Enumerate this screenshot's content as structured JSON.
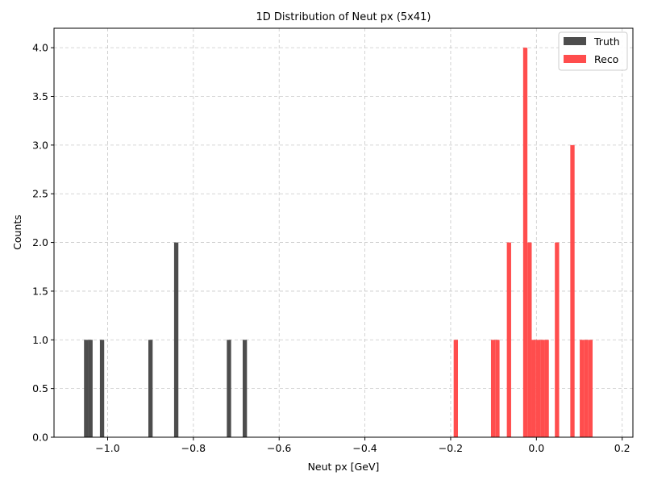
{
  "chart_data": {
    "type": "bar",
    "title": "1D Distribution of Neut px (5x41)",
    "xlabel": "Neut px [GeV]",
    "ylabel": "Counts",
    "xlim": [
      -1.125,
      0.225
    ],
    "ylim": [
      0.0,
      4.2
    ],
    "xticks": [
      -1.0,
      -0.8,
      -0.6,
      -0.4,
      -0.2,
      0.0,
      0.2
    ],
    "xtick_labels": [
      "−1.0",
      "−0.8",
      "−0.6",
      "−0.4",
      "−0.2",
      "0.0",
      "0.2"
    ],
    "yticks": [
      0.0,
      0.5,
      1.0,
      1.5,
      2.0,
      2.5,
      3.0,
      3.5,
      4.0
    ],
    "ytick_labels": [
      "0.0",
      "0.5",
      "1.0",
      "1.5",
      "2.0",
      "2.5",
      "3.0",
      "3.5",
      "4.0"
    ],
    "grid": true,
    "legend_position": "top-right",
    "series": [
      {
        "name": "Truth",
        "color": "#4d4d4d",
        "bins": [
          {
            "x0": -1.055,
            "x1": -1.045,
            "count": 1
          },
          {
            "x0": -1.045,
            "x1": -1.035,
            "count": 1
          },
          {
            "x0": -1.018,
            "x1": -1.008,
            "count": 1
          },
          {
            "x0": -0.905,
            "x1": -0.895,
            "count": 1
          },
          {
            "x0": -0.845,
            "x1": -0.835,
            "count": 2
          },
          {
            "x0": -0.722,
            "x1": -0.712,
            "count": 1
          },
          {
            "x0": -0.685,
            "x1": -0.675,
            "count": 1
          }
        ]
      },
      {
        "name": "Reco",
        "color": "#ff4d4d",
        "bins": [
          {
            "x0": -0.193,
            "x1": -0.183,
            "count": 1
          },
          {
            "x0": -0.106,
            "x1": -0.096,
            "count": 1
          },
          {
            "x0": -0.096,
            "x1": -0.086,
            "count": 1
          },
          {
            "x0": -0.069,
            "x1": -0.059,
            "count": 2
          },
          {
            "x0": -0.031,
            "x1": -0.021,
            "count": 4
          },
          {
            "x0": -0.021,
            "x1": -0.011,
            "count": 2
          },
          {
            "x0": -0.011,
            "x1": -0.001,
            "count": 1
          },
          {
            "x0": -0.001,
            "x1": 0.009,
            "count": 1
          },
          {
            "x0": 0.009,
            "x1": 0.019,
            "count": 1
          },
          {
            "x0": 0.019,
            "x1": 0.029,
            "count": 1
          },
          {
            "x0": 0.043,
            "x1": 0.053,
            "count": 2
          },
          {
            "x0": 0.079,
            "x1": 0.089,
            "count": 3
          },
          {
            "x0": 0.101,
            "x1": 0.111,
            "count": 1
          },
          {
            "x0": 0.111,
            "x1": 0.121,
            "count": 1
          },
          {
            "x0": 0.121,
            "x1": 0.131,
            "count": 1
          }
        ]
      }
    ]
  }
}
